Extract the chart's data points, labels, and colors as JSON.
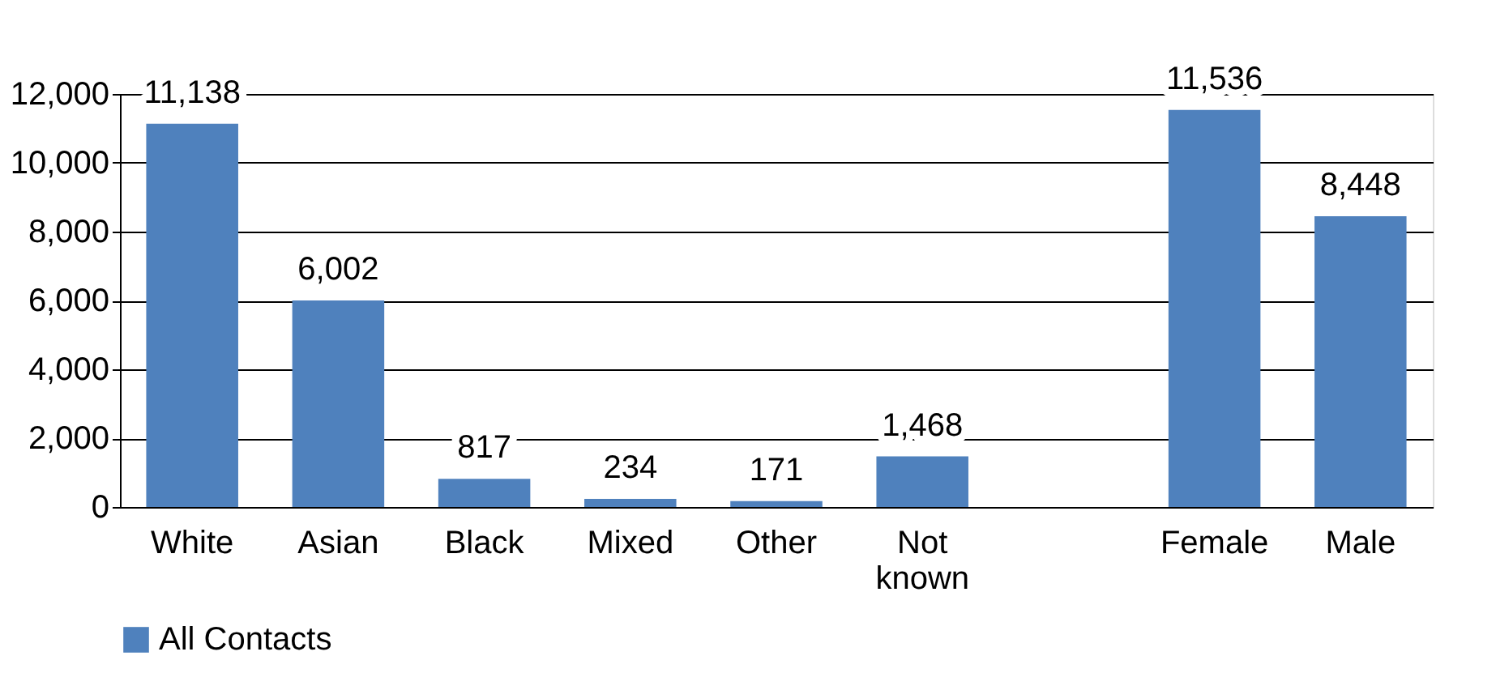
{
  "chart_data": {
    "type": "bar",
    "categories": [
      "White",
      "Asian",
      "Black",
      "Mixed",
      "Other",
      "Not known",
      null,
      "Female",
      "Male"
    ],
    "series": [
      {
        "name": "All Contacts",
        "color": "#4f81bd",
        "values": [
          11138,
          6002,
          817,
          234,
          171,
          1468,
          null,
          11536,
          8448
        ],
        "value_labels": [
          "11,138",
          "6,002",
          "817",
          "234",
          "171",
          "1,468",
          null,
          "11,536",
          "8,448"
        ]
      }
    ],
    "ylim": [
      0,
      12000
    ],
    "yticks": [
      0,
      {
        "value": 2000,
        "label": "2,000"
      },
      {
        "value": 4000,
        "label": "4,000"
      },
      {
        "value": 6000,
        "label": "6,000"
      },
      {
        "value": 8000,
        "label": "8,000"
      },
      {
        "value": 10000,
        "label": "10,000"
      },
      {
        "value": 12000,
        "label": "12,000"
      }
    ],
    "grid": "y",
    "legend": "bottom"
  }
}
